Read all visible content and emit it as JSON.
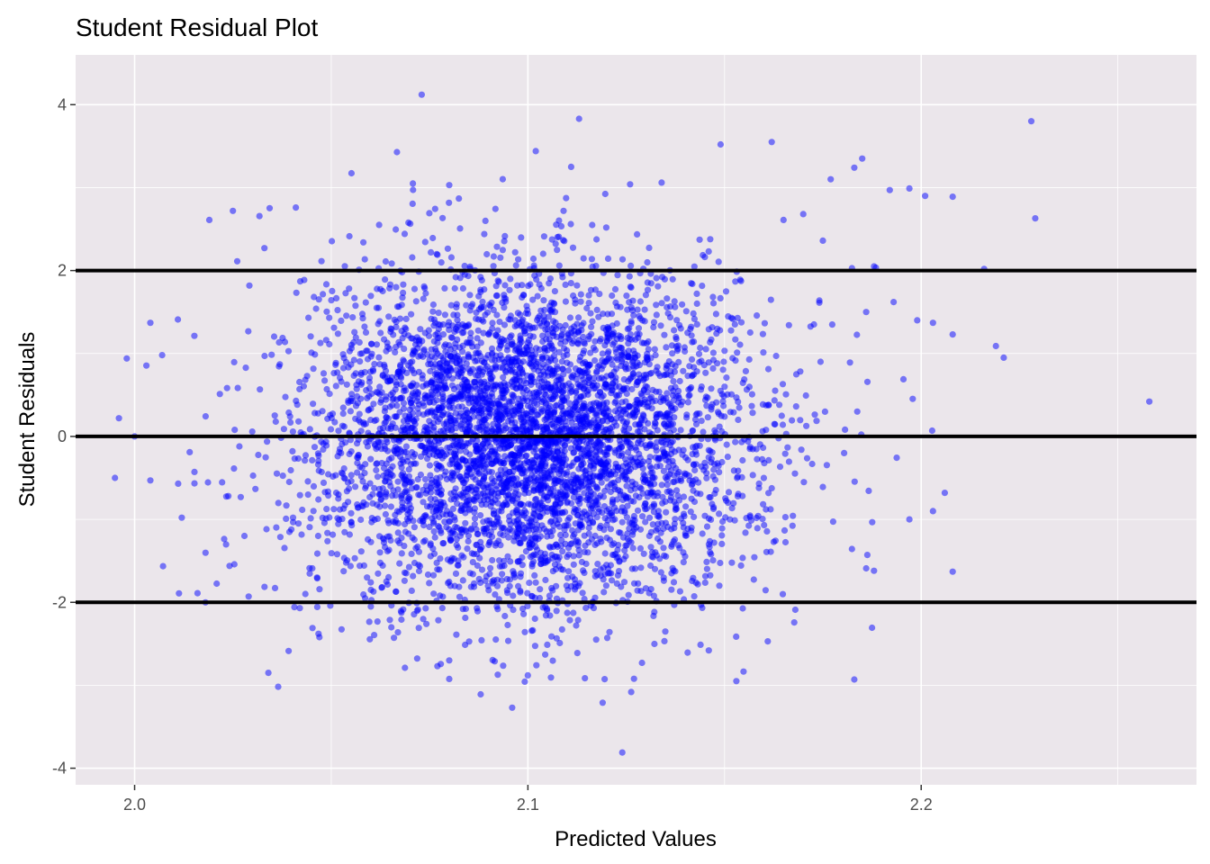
{
  "chart_data": {
    "type": "scatter",
    "title": "Student Residual Plot",
    "xlabel": "Predicted Values",
    "ylabel": "Student Residuals",
    "xlim": [
      1.985,
      2.27
    ],
    "ylim": [
      -4.2,
      4.6
    ],
    "x_ticks": [
      "2.0",
      "2.1",
      "2.2"
    ],
    "x_tick_values": [
      2.0,
      2.1,
      2.2
    ],
    "y_ticks": [
      "-4",
      "-2",
      "0",
      "2",
      "4"
    ],
    "y_tick_values": [
      -4,
      -2,
      0,
      2,
      4
    ],
    "grid": true,
    "panel_background": "#EBE6EB",
    "point_color": "#0000FF",
    "point_alpha": 0.5,
    "reference_lines": [
      {
        "y": 2,
        "color": "#000000"
      },
      {
        "y": 0,
        "color": "#000000"
      },
      {
        "y": -2,
        "color": "#000000"
      }
    ],
    "series": [
      {
        "points_summary": {
          "count_approx": 5000,
          "x_center": 2.1,
          "x_sd": 0.028,
          "y_center": 0,
          "y_sd": 1
        },
        "points": [
          [
            2.073,
            4.12
          ],
          [
            2.113,
            3.83
          ],
          [
            2.228,
            3.8
          ],
          [
            2.102,
            3.44
          ],
          [
            2.149,
            3.52
          ],
          [
            2.162,
            3.55
          ],
          [
            2.185,
            3.35
          ],
          [
            2.111,
            3.25
          ],
          [
            2.183,
            3.24
          ],
          [
            2.177,
            3.1
          ],
          [
            2.134,
            3.06
          ],
          [
            2.08,
            3.03
          ],
          [
            2.126,
            3.04
          ],
          [
            2.229,
            2.63
          ],
          [
            2.019,
            2.61
          ],
          [
            2.025,
            2.72
          ],
          [
            2.201,
            2.9
          ],
          [
            2.208,
            2.89
          ],
          [
            2.192,
            2.97
          ],
          [
            2.197,
            2.99
          ],
          [
            2.216,
            2.02
          ],
          [
            2.033,
            2.27
          ],
          [
            2.041,
            2.76
          ],
          [
            2.258,
            0.42
          ],
          [
            2.221,
            0.95
          ],
          [
            2.219,
            1.09
          ],
          [
            2.203,
            1.37
          ],
          [
            2.208,
            1.23
          ],
          [
            1.998,
            0.94
          ],
          [
            1.996,
            0.22
          ],
          [
            1.995,
            -0.5
          ],
          [
            2.004,
            -0.53
          ],
          [
            2.012,
            -0.98
          ],
          [
            2.014,
            -0.19
          ],
          [
            2.016,
            -1.89
          ],
          [
            2.018,
            -2.0
          ],
          [
            2.034,
            -2.85
          ],
          [
            2.029,
            -1.93
          ],
          [
            2.197,
            -1.0
          ],
          [
            2.203,
            -0.9
          ],
          [
            2.206,
            -0.68
          ],
          [
            2.208,
            -1.63
          ],
          [
            2.183,
            -2.93
          ],
          [
            2.153,
            -2.95
          ],
          [
            2.119,
            -3.21
          ],
          [
            2.096,
            -3.27
          ],
          [
            2.088,
            -3.11
          ],
          [
            2.124,
            -3.81
          ],
          [
            2.077,
            -2.77
          ],
          [
            2.08,
            -2.7
          ],
          [
            2.186,
            -1.59
          ],
          [
            2.175,
            -0.61
          ],
          [
            2.188,
            -1.62
          ],
          [
            2.168,
            -2.09
          ],
          [
            2.161,
            -2.47
          ],
          [
            2.146,
            -2.58
          ],
          [
            2.129,
            -2.73
          ],
          [
            2.047,
            -2.42
          ],
          [
            2.042,
            -2.07
          ],
          [
            2.004,
            1.37
          ],
          [
            2.0,
            -0.0
          ],
          [
            2.011,
            1.41
          ],
          [
            2.007,
            0.98
          ],
          [
            2.175,
            2.36
          ],
          [
            2.17,
            2.68
          ],
          [
            2.165,
            2.61
          ],
          [
            2.188,
            2.05
          ],
          [
            2.186,
            1.5
          ],
          [
            2.193,
            1.62
          ],
          [
            2.199,
            1.4
          ]
        ]
      }
    ]
  }
}
